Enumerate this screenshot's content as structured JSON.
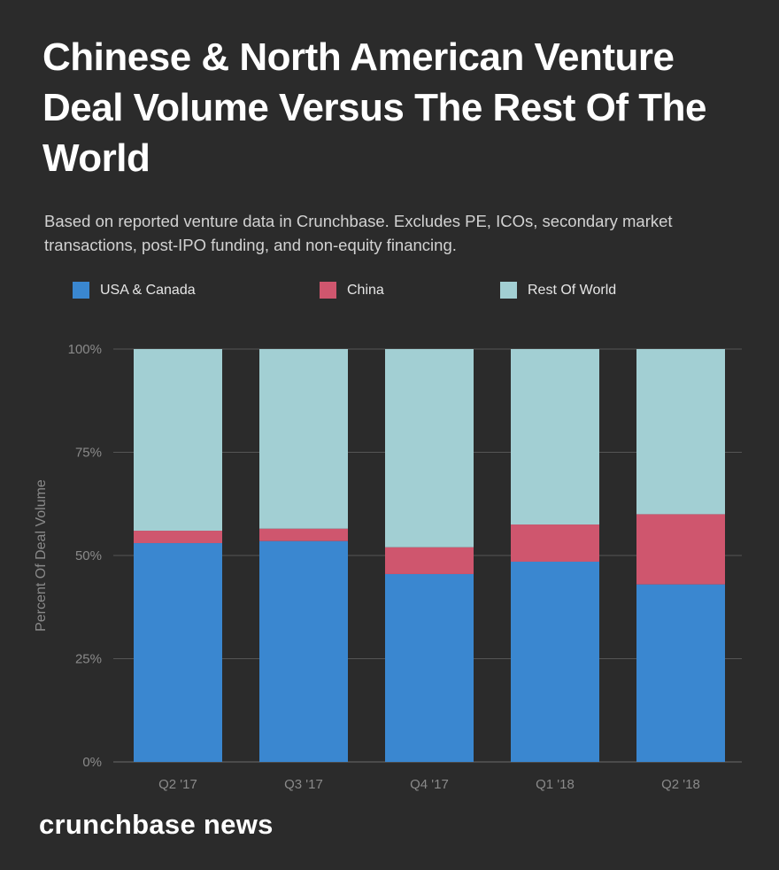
{
  "title": "Chinese & North American Venture Deal Volume Versus The Rest Of The World",
  "subtitle": "Based on reported venture data in Crunchbase. Excludes PE, ICOs, secondary market transactions, post-IPO funding, and non-equity financing.",
  "brand": "crunchbase news",
  "colors": {
    "usa_canada": "#3a87d0",
    "china": "#cf566e",
    "rest_of_world": "#a2cfd3",
    "grid": "#555555",
    "axis_text": "#8a8a8a"
  },
  "chart_data": {
    "type": "bar",
    "stacked": true,
    "categories": [
      "Q2 '17",
      "Q3 '17",
      "Q4 '17",
      "Q1 '18",
      "Q2 '18"
    ],
    "series": [
      {
        "name": "USA & Canada",
        "color_key": "usa_canada",
        "values": [
          53,
          53.5,
          45.5,
          48.5,
          43
        ]
      },
      {
        "name": "China",
        "color_key": "china",
        "values": [
          3,
          3,
          6.5,
          9,
          17
        ]
      },
      {
        "name": "Rest Of World",
        "color_key": "rest_of_world",
        "values": [
          44,
          43.5,
          48,
          42.5,
          40
        ]
      }
    ],
    "ylabel": "Percent Of Deal Volume",
    "xlabel": "",
    "ylim": [
      0,
      100
    ],
    "yticks": [
      "0%",
      "25%",
      "50%",
      "75%",
      "100%"
    ],
    "ytick_values": [
      0,
      25,
      50,
      75,
      100
    ],
    "legend_position": "top",
    "grid": true
  }
}
